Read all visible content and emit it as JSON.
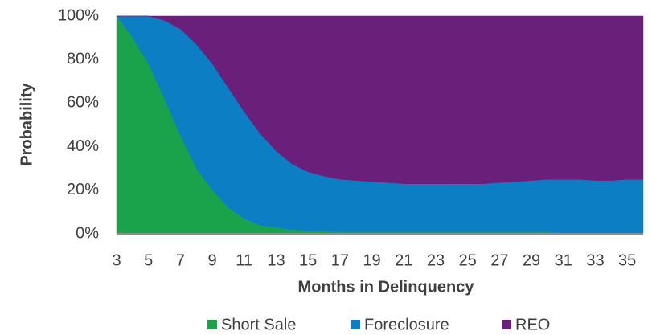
{
  "chart_data": {
    "type": "stacked_area",
    "xlabel": "Months in Delinquency",
    "ylabel": "Probability",
    "x": [
      3,
      4,
      5,
      6,
      7,
      8,
      9,
      10,
      11,
      12,
      13,
      14,
      15,
      16,
      17,
      18,
      19,
      20,
      21,
      22,
      23,
      24,
      25,
      26,
      27,
      28,
      29,
      30,
      31,
      32,
      33,
      34,
      35,
      36
    ],
    "xlim": [
      3,
      36
    ],
    "xticks": [
      3,
      5,
      7,
      9,
      11,
      13,
      15,
      17,
      19,
      21,
      23,
      25,
      27,
      29,
      31,
      33,
      35
    ],
    "ylim": [
      0,
      100
    ],
    "yticks": [
      {
        "value": 0,
        "label": "0%"
      },
      {
        "value": 20,
        "label": "20%"
      },
      {
        "value": 40,
        "label": "40%"
      },
      {
        "value": 60,
        "label": "60%"
      },
      {
        "value": 80,
        "label": "80%"
      },
      {
        "value": 100,
        "label": "100%"
      }
    ],
    "legend": "bottom",
    "series": [
      {
        "name": "Short Sale",
        "color": "#1aa34a",
        "values": [
          100,
          90,
          78,
          62,
          45,
          30,
          20,
          12,
          7,
          4,
          3,
          2,
          1.5,
          1.2,
          1,
          1,
          1,
          1,
          1,
          1,
          1,
          1,
          1,
          1,
          1,
          1,
          1,
          1,
          0.5,
          0.5,
          0.5,
          0.5,
          0.5,
          0.5
        ]
      },
      {
        "name": "Foreclosure",
        "color": "#0c7fc4",
        "values": [
          0,
          10,
          22,
          36,
          49,
          57,
          58,
          55,
          49,
          42,
          35,
          30,
          27,
          25.3,
          24,
          23.5,
          23,
          22.5,
          22,
          22,
          22,
          22,
          22,
          22,
          22.5,
          23,
          23.5,
          24,
          24.5,
          24.5,
          24,
          24,
          24.5,
          24.5
        ]
      },
      {
        "name": "REO",
        "color": "#6a1f7a",
        "values": [
          0,
          0,
          0,
          2,
          6,
          13,
          22,
          33,
          44,
          54,
          62,
          68,
          71.5,
          73.5,
          75,
          75.5,
          76,
          76.5,
          77,
          77,
          77,
          77,
          77,
          77,
          76.5,
          76,
          75.5,
          75,
          75,
          75,
          75.5,
          75.5,
          75,
          75
        ]
      }
    ]
  }
}
